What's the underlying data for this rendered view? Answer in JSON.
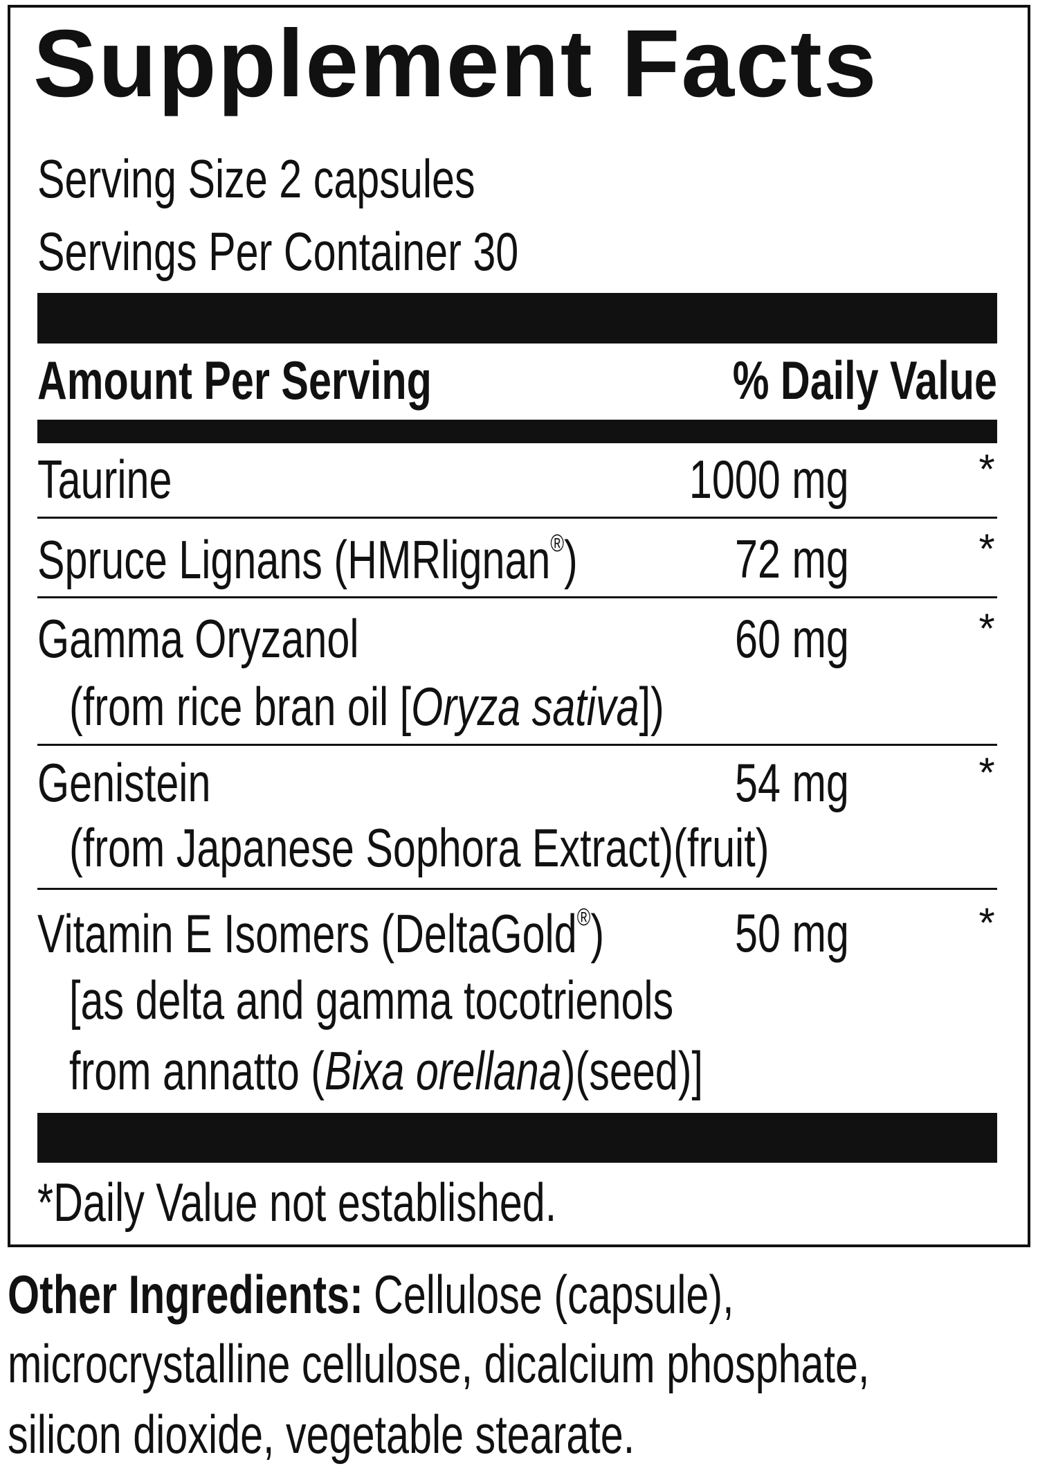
{
  "title": "Supplement Facts",
  "serving_size": "Serving Size 2 capsules",
  "servings_per_container": "Servings Per Container 30",
  "header": {
    "amount": "Amount Per Serving",
    "daily_value": "% Daily Value"
  },
  "rows": [
    {
      "lines": [
        [
          {
            "text": "Taurine"
          }
        ]
      ],
      "amount": "1000 mg",
      "daily_value": "*"
    },
    {
      "lines": [
        [
          {
            "text": "Spruce Lignans (HMRlignan"
          },
          {
            "text": "®",
            "style": "sup"
          },
          {
            "text": ")"
          }
        ]
      ],
      "amount": "72 mg",
      "daily_value": "*"
    },
    {
      "lines": [
        [
          {
            "text": "Gamma Oryzanol"
          }
        ],
        [
          {
            "text": "(from rice bran oil ["
          },
          {
            "text": "Oryza sativa",
            "style": "italic"
          },
          {
            "text": "])"
          }
        ]
      ],
      "amount": "60 mg",
      "daily_value": "*"
    },
    {
      "lines": [
        [
          {
            "text": "Genistein"
          }
        ],
        [
          {
            "text": "(from Japanese Sophora Extract)(fruit)"
          }
        ]
      ],
      "amount": "54 mg",
      "daily_value": "*"
    },
    {
      "lines": [
        [
          {
            "text": "Vitamin E Isomers (DeltaGold"
          },
          {
            "text": "®",
            "style": "sup"
          },
          {
            "text": ")"
          }
        ],
        [
          {
            "text": "[as delta and gamma tocotrienols"
          }
        ],
        [
          {
            "text": "from annatto ("
          },
          {
            "text": "Bixa orellana",
            "style": "italic"
          },
          {
            "text": ")(seed)]"
          }
        ]
      ],
      "amount": "50 mg",
      "daily_value": "*"
    }
  ],
  "footnote": "*Daily Value not established.",
  "other_ingredients": {
    "label": "Other Ingredients:",
    "lines": [
      "Cellulose (capsule),",
      "microcrystalline cellulose, dicalcium phosphate,",
      "silicon dioxide, vegetable stearate."
    ]
  }
}
